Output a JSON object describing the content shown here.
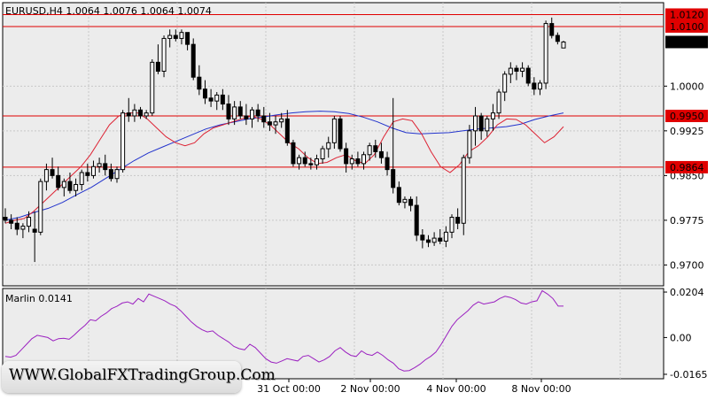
{
  "chart_data": [
    {
      "type": "candlestick",
      "title": "EURUSD,H4  1.0064 1.0076 1.0064 1.0074",
      "ylim": [
        0.9665,
        1.014
      ],
      "y_ticks": [
        "1.0000",
        "0.9925",
        "0.9850",
        "0.9775",
        "0.9700"
      ],
      "x_labels": [
        "31 Oct 00:00",
        "2 Nov 00:00",
        "4 Nov 00:00",
        "8 Nov 00:00"
      ],
      "current_price": "1.0074",
      "levels": [
        {
          "label": "1.0120",
          "value": 1.012
        },
        {
          "label": "1.0100",
          "value": 1.01
        },
        {
          "label": "0.9950",
          "value": 0.995
        },
        {
          "label": "0.9864",
          "value": 0.9864
        }
      ],
      "candles": [
        [
          0.978,
          0.9795,
          0.977,
          0.9775
        ],
        [
          0.9775,
          0.9785,
          0.976,
          0.977
        ],
        [
          0.977,
          0.978,
          0.975,
          0.976
        ],
        [
          0.976,
          0.977,
          0.9745,
          0.9765
        ],
        [
          0.9765,
          0.979,
          0.9755,
          0.978
        ],
        [
          0.976,
          0.979,
          0.9705,
          0.9755
        ],
        [
          0.9755,
          0.9845,
          0.975,
          0.984
        ],
        [
          0.984,
          0.987,
          0.9825,
          0.986
        ],
        [
          0.986,
          0.988,
          0.9845,
          0.985
        ],
        [
          0.985,
          0.9865,
          0.9825,
          0.983
        ],
        [
          0.983,
          0.9845,
          0.9815,
          0.984
        ],
        [
          0.984,
          0.9855,
          0.982,
          0.9825
        ],
        [
          0.9825,
          0.9845,
          0.9815,
          0.9835
        ],
        [
          0.9835,
          0.986,
          0.9825,
          0.9855
        ],
        [
          0.9855,
          0.987,
          0.984,
          0.985
        ],
        [
          0.985,
          0.9875,
          0.9845,
          0.9865
        ],
        [
          0.9865,
          0.988,
          0.9855,
          0.987
        ],
        [
          0.987,
          0.9885,
          0.985,
          0.986
        ],
        [
          0.986,
          0.987,
          0.984,
          0.9845
        ],
        [
          0.9845,
          0.9865,
          0.9838,
          0.986
        ],
        [
          0.986,
          0.996,
          0.9855,
          0.9955
        ],
        [
          0.9955,
          0.998,
          0.994,
          0.995
        ],
        [
          0.995,
          0.997,
          0.994,
          0.996
        ],
        [
          0.996,
          0.9965,
          0.9945,
          0.995
        ],
        [
          0.995,
          0.996,
          0.9945,
          0.9955
        ],
        [
          0.9955,
          1.0045,
          0.995,
          1.004
        ],
        [
          1.004,
          1.007,
          1.002,
          1.0025
        ],
        [
          1.0025,
          1.0085,
          1.0015,
          1.008
        ],
        [
          1.008,
          1.0095,
          1.0065,
          1.0085
        ],
        [
          1.0085,
          1.0095,
          1.0075,
          1.008
        ],
        [
          1.008,
          1.0095,
          1.007,
          1.009
        ],
        [
          1.009,
          1.009,
          1.006,
          1.007
        ],
        [
          1.007,
          1.008,
          1.001,
          1.0015
        ],
        [
          1.0015,
          1.0035,
          0.9985,
          0.9995
        ],
        [
          0.9995,
          1.001,
          0.997,
          0.998
        ],
        [
          0.998,
          0.9995,
          0.9965,
          0.9975
        ],
        [
          0.9975,
          0.999,
          0.996,
          0.9985
        ],
        [
          0.9985,
          0.9995,
          0.996,
          0.997
        ],
        [
          0.997,
          0.9985,
          0.9935,
          0.9945
        ],
        [
          0.9945,
          0.9975,
          0.9935,
          0.9965
        ],
        [
          0.9965,
          0.9975,
          0.9945,
          0.995
        ],
        [
          0.995,
          0.997,
          0.9935,
          0.9945
        ],
        [
          0.9945,
          0.9965,
          0.993,
          0.996
        ],
        [
          0.996,
          0.997,
          0.994,
          0.995
        ],
        [
          0.995,
          0.9965,
          0.993,
          0.994
        ],
        [
          0.994,
          0.9955,
          0.9925,
          0.9935
        ],
        [
          0.9935,
          0.995,
          0.992,
          0.994
        ],
        [
          0.994,
          0.9955,
          0.993,
          0.9945
        ],
        [
          0.9945,
          0.996,
          0.99,
          0.9905
        ],
        [
          0.9905,
          0.991,
          0.9865,
          0.987
        ],
        [
          0.987,
          0.9885,
          0.986,
          0.988
        ],
        [
          0.988,
          0.989,
          0.9865,
          0.987
        ],
        [
          0.987,
          0.988,
          0.986,
          0.9868
        ],
        [
          0.9868,
          0.9885,
          0.986,
          0.9878
        ],
        [
          0.9878,
          0.99,
          0.987,
          0.9895
        ],
        [
          0.9895,
          0.9915,
          0.988,
          0.9905
        ],
        [
          0.9905,
          0.995,
          0.9895,
          0.9945
        ],
        [
          0.9945,
          0.995,
          0.989,
          0.9895
        ],
        [
          0.9895,
          0.9905,
          0.9855,
          0.987
        ],
        [
          0.987,
          0.9885,
          0.986,
          0.9878
        ],
        [
          0.9878,
          0.989,
          0.9865,
          0.987
        ],
        [
          0.987,
          0.989,
          0.986,
          0.9885
        ],
        [
          0.9885,
          0.9905,
          0.9875,
          0.99
        ],
        [
          0.99,
          0.991,
          0.988,
          0.989
        ],
        [
          0.989,
          0.9905,
          0.987,
          0.988
        ],
        [
          0.988,
          0.989,
          0.985,
          0.986
        ],
        [
          0.986,
          0.998,
          0.982,
          0.983
        ],
        [
          0.983,
          0.984,
          0.98,
          0.9805
        ],
        [
          0.9805,
          0.9815,
          0.9795,
          0.981
        ],
        [
          0.981,
          0.9815,
          0.979,
          0.98
        ],
        [
          0.98,
          0.9815,
          0.974,
          0.975
        ],
        [
          0.975,
          0.976,
          0.9728,
          0.9742
        ],
        [
          0.9742,
          0.975,
          0.973,
          0.9738
        ],
        [
          0.9738,
          0.9755,
          0.9732,
          0.9745
        ],
        [
          0.9745,
          0.976,
          0.9735,
          0.974
        ],
        [
          0.974,
          0.9765,
          0.973,
          0.9755
        ],
        [
          0.9755,
          0.9785,
          0.9745,
          0.978
        ],
        [
          0.978,
          0.9795,
          0.976,
          0.977
        ],
        [
          0.977,
          0.9885,
          0.975,
          0.988
        ],
        [
          0.988,
          0.9935,
          0.987,
          0.9925
        ],
        [
          0.9925,
          0.9965,
          0.99,
          0.995
        ],
        [
          0.995,
          0.9955,
          0.991,
          0.9925
        ],
        [
          0.9925,
          0.995,
          0.9915,
          0.9945
        ],
        [
          0.9945,
          0.997,
          0.9925,
          0.9955
        ],
        [
          0.9955,
          0.9995,
          0.9945,
          0.999
        ],
        [
          0.999,
          1.0025,
          0.9975,
          1.002
        ],
        [
          1.002,
          1.004,
          1.0005,
          1.003
        ],
        [
          1.003,
          1.0035,
          1.001,
          1.0025
        ],
        [
          1.0025,
          1.004,
          1.0015,
          1.003
        ],
        [
          1.003,
          1.0035,
          1.0,
          1.0005
        ],
        [
          1.0005,
          1.0015,
          0.9985,
          0.9995
        ],
        [
          0.9995,
          1.001,
          0.9985,
          1.0005
        ],
        [
          1.0005,
          1.011,
          0.9995,
          1.0105
        ],
        [
          1.0105,
          1.0115,
          1.008,
          1.0085
        ],
        [
          1.0085,
          1.009,
          1.007,
          1.0075
        ],
        [
          1.0064,
          1.0076,
          1.0064,
          1.0074
        ]
      ],
      "ma_fast": [
        0.977,
        0.9775,
        0.9778,
        0.979,
        0.9805,
        0.982,
        0.9835,
        0.985,
        0.9865,
        0.9885,
        0.991,
        0.9935,
        0.995,
        0.9955,
        0.9955,
        0.9945,
        0.993,
        0.9915,
        0.9905,
        0.99,
        0.9905,
        0.992,
        0.993,
        0.9935,
        0.994,
        0.9945,
        0.995,
        0.9945,
        0.9935,
        0.992,
        0.9905,
        0.9895,
        0.988,
        0.987,
        0.9872,
        0.988,
        0.9885,
        0.9875,
        0.987,
        0.9885,
        0.9915,
        0.994,
        0.9945,
        0.9942,
        0.992,
        0.989,
        0.9865,
        0.9855,
        0.9868,
        0.989,
        0.99,
        0.9915,
        0.9935,
        0.9945,
        0.9944,
        0.9935,
        0.992,
        0.9905,
        0.9915,
        0.9932
      ],
      "ma_slow": [
        0.9775,
        0.978,
        0.9788,
        0.9795,
        0.9805,
        0.9818,
        0.983,
        0.9845,
        0.986,
        0.9875,
        0.9888,
        0.9898,
        0.9908,
        0.9918,
        0.9928,
        0.9935,
        0.994,
        0.9945,
        0.9948,
        0.9952,
        0.9955,
        0.9957,
        0.9958,
        0.9957,
        0.9954,
        0.9948,
        0.994,
        0.993,
        0.9922,
        0.992,
        0.9921,
        0.9922,
        0.9925,
        0.9928,
        0.993,
        0.9932,
        0.9936,
        0.9944,
        0.995,
        0.9955
      ]
    },
    {
      "type": "line",
      "title": "Marlin 0.0141",
      "ylim": [
        -0.0185,
        0.022
      ],
      "y_ticks": [
        "0.0204",
        "0.00",
        "-0.0165"
      ],
      "values": [
        -0.0085,
        -0.0088,
        -0.008,
        -0.0055,
        -0.003,
        -0.0005,
        0.001,
        0.0005,
        0.0,
        -0.0015,
        -0.0005,
        -0.0003,
        -0.0008,
        0.0012,
        0.0035,
        0.0055,
        0.008,
        0.0075,
        0.0095,
        0.011,
        0.013,
        0.014,
        0.0155,
        0.016,
        0.015,
        0.0175,
        0.016,
        0.0195,
        0.0185,
        0.0175,
        0.0165,
        0.015,
        0.014,
        0.012,
        0.0095,
        0.007,
        0.005,
        0.0035,
        0.0025,
        0.003,
        0.001,
        -0.0005,
        -0.002,
        -0.004,
        -0.005,
        -0.0055,
        -0.003,
        -0.0045,
        -0.007,
        -0.0095,
        -0.011,
        -0.0115,
        -0.0105,
        -0.0095,
        -0.01,
        -0.0105,
        -0.0085,
        -0.008,
        -0.0095,
        -0.011,
        -0.01,
        -0.0085,
        -0.006,
        -0.0045,
        -0.0065,
        -0.008,
        -0.0085,
        -0.006,
        -0.0075,
        -0.008,
        -0.0065,
        -0.008,
        -0.01,
        -0.0115,
        -0.014,
        -0.015,
        -0.0148,
        -0.0135,
        -0.012,
        -0.01,
        -0.0085,
        -0.0065,
        -0.003,
        0.001,
        0.005,
        0.008,
        0.01,
        0.012,
        0.0145,
        0.016,
        0.015,
        0.0155,
        0.016,
        0.0175,
        0.0185,
        0.018,
        0.017,
        0.0155,
        0.015,
        0.016,
        0.0165,
        0.021,
        0.0195,
        0.0175,
        0.0141,
        0.0141
      ]
    }
  ],
  "watermark": "WWW.GlobalFXTradingGroup.Com",
  "colors": {
    "background": "#ffffff",
    "plot_background": "#ececec",
    "grid": "#c8c8c8",
    "bull_fill": "#ffffff",
    "bear_fill": "#000000",
    "level_line": "#e00000",
    "ma_fast": "#dd2233",
    "ma_slow": "#2233cc",
    "marlin_line": "#9b20c0",
    "price_tag_bg": "#000000",
    "level_tag_bg": "#e00000"
  }
}
